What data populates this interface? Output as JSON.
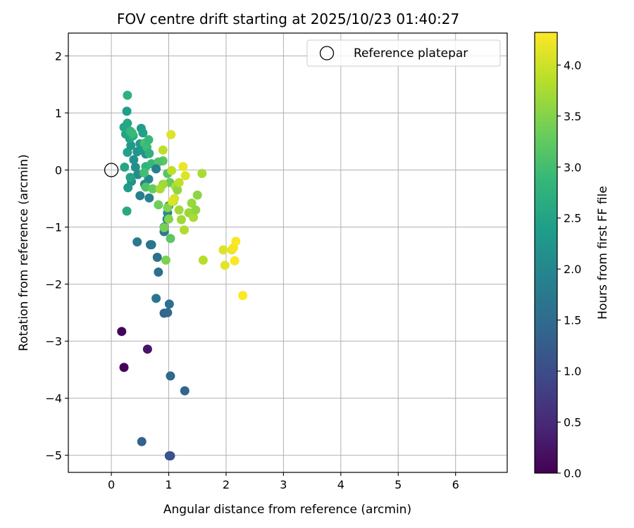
{
  "chart_data": {
    "type": "scatter",
    "title": "FOV centre drift starting at 2025/10/23 01:40:27",
    "xlabel": "Angular distance from reference (arcmin)",
    "ylabel": "Rotation from reference (arcmin)",
    "xlim": [
      -0.75,
      6.9
    ],
    "ylim": [
      -5.3,
      2.4
    ],
    "xticks": [
      0,
      1,
      2,
      3,
      4,
      5,
      6
    ],
    "yticks": [
      2,
      1,
      0,
      -1,
      -2,
      -3,
      -4,
      -5
    ],
    "xtick_labels": [
      "0",
      "1",
      "2",
      "3",
      "4",
      "5",
      "6"
    ],
    "ytick_labels": [
      "2",
      "1",
      "0",
      "−1",
      "−2",
      "−3",
      "−4",
      "−5"
    ],
    "grid": true,
    "legend": {
      "position": "top-right",
      "label": "Reference platepar"
    },
    "reference_point": {
      "x": 0,
      "y": 0
    },
    "colorbar": {
      "label": "Hours from first FF file",
      "min": 0.0,
      "max": 4.32,
      "ticks": [
        0.0,
        0.5,
        1.0,
        1.5,
        2.0,
        2.5,
        3.0,
        3.5,
        4.0
      ],
      "tick_labels": [
        "0.0",
        "0.5",
        "1.0",
        "1.5",
        "2.0",
        "2.5",
        "3.0",
        "3.5",
        "4.0"
      ],
      "colormap": "viridis"
    },
    "points": [
      {
        "x": 0.18,
        "y": -2.83,
        "h": 0.05
      },
      {
        "x": 0.22,
        "y": -3.46,
        "h": 0.05
      },
      {
        "x": 0.63,
        "y": -3.14,
        "h": 0.25
      },
      {
        "x": 0.53,
        "y": -4.76,
        "h": 1.35
      },
      {
        "x": 1.01,
        "y": -5.01,
        "h": 1.05
      },
      {
        "x": 1.03,
        "y": -5.01,
        "h": 1.1
      },
      {
        "x": 1.28,
        "y": -3.87,
        "h": 1.4
      },
      {
        "x": 1.03,
        "y": -3.61,
        "h": 1.45
      },
      {
        "x": 0.92,
        "y": -2.51,
        "h": 1.4
      },
      {
        "x": 0.98,
        "y": -2.5,
        "h": 1.5
      },
      {
        "x": 1.01,
        "y": -2.35,
        "h": 1.55
      },
      {
        "x": 0.78,
        "y": -2.25,
        "h": 1.7
      },
      {
        "x": 0.82,
        "y": -1.79,
        "h": 1.55
      },
      {
        "x": 0.8,
        "y": -1.53,
        "h": 1.6
      },
      {
        "x": 0.45,
        "y": -1.26,
        "h": 1.75
      },
      {
        "x": 0.68,
        "y": -1.31,
        "h": 1.65
      },
      {
        "x": 0.7,
        "y": -1.31,
        "h": 1.7
      },
      {
        "x": 0.92,
        "y": -1.08,
        "h": 1.75
      },
      {
        "x": 0.92,
        "y": -1.0,
        "h": 1.8
      },
      {
        "x": 0.97,
        "y": -0.86,
        "h": 2.0
      },
      {
        "x": 0.98,
        "y": -0.75,
        "h": 2.05
      },
      {
        "x": 1.0,
        "y": -0.63,
        "h": 2.1
      },
      {
        "x": 0.66,
        "y": -0.49,
        "h": 1.9
      },
      {
        "x": 0.5,
        "y": -0.45,
        "h": 1.85
      },
      {
        "x": 0.58,
        "y": -0.25,
        "h": 1.95
      },
      {
        "x": 0.65,
        "y": -0.16,
        "h": 2.0
      },
      {
        "x": 0.46,
        "y": -0.08,
        "h": 2.1
      },
      {
        "x": 0.35,
        "y": -0.2,
        "h": 2.2
      },
      {
        "x": 0.29,
        "y": -0.31,
        "h": 2.35
      },
      {
        "x": 0.33,
        "y": -0.13,
        "h": 2.5
      },
      {
        "x": 0.27,
        "y": -0.72,
        "h": 2.6
      },
      {
        "x": 0.23,
        "y": 0.05,
        "h": 2.55
      },
      {
        "x": 0.28,
        "y": 0.31,
        "h": 2.45
      },
      {
        "x": 0.34,
        "y": 0.43,
        "h": 2.3
      },
      {
        "x": 0.39,
        "y": 0.18,
        "h": 2.2
      },
      {
        "x": 0.42,
        "y": 0.05,
        "h": 2.15
      },
      {
        "x": 0.45,
        "y": 0.32,
        "h": 2.25
      },
      {
        "x": 0.5,
        "y": 0.46,
        "h": 2.35
      },
      {
        "x": 0.54,
        "y": 0.35,
        "h": 2.3
      },
      {
        "x": 0.6,
        "y": 0.28,
        "h": 2.2
      },
      {
        "x": 0.52,
        "y": 0.73,
        "h": 2.4
      },
      {
        "x": 0.55,
        "y": 0.65,
        "h": 2.45
      },
      {
        "x": 0.25,
        "y": 0.63,
        "h": 2.5
      },
      {
        "x": 0.28,
        "y": 0.82,
        "h": 2.6
      },
      {
        "x": 0.22,
        "y": 0.75,
        "h": 2.55
      },
      {
        "x": 0.27,
        "y": 1.03,
        "h": 2.4
      },
      {
        "x": 0.28,
        "y": 1.31,
        "h": 2.75
      },
      {
        "x": 0.32,
        "y": 0.55,
        "h": 2.5
      },
      {
        "x": 0.38,
        "y": 0.6,
        "h": 2.7
      },
      {
        "x": 0.33,
        "y": 0.68,
        "h": 2.85
      },
      {
        "x": 0.36,
        "y": 0.65,
        "h": 2.9
      },
      {
        "x": 0.58,
        "y": 0.47,
        "h": 3.05
      },
      {
        "x": 0.62,
        "y": 0.4,
        "h": 2.95
      },
      {
        "x": 0.65,
        "y": 0.53,
        "h": 2.9
      },
      {
        "x": 0.66,
        "y": 0.29,
        "h": 2.75
      },
      {
        "x": 0.6,
        "y": 0.06,
        "h": 2.8
      },
      {
        "x": 0.7,
        "y": 0.11,
        "h": 2.9
      },
      {
        "x": 0.57,
        "y": -0.05,
        "h": 3.0
      },
      {
        "x": 0.6,
        "y": -0.3,
        "h": 3.1
      },
      {
        "x": 0.72,
        "y": -0.33,
        "h": 3.3
      },
      {
        "x": 0.82,
        "y": -0.61,
        "h": 3.35
      },
      {
        "x": 0.92,
        "y": -1.01,
        "h": 3.4
      },
      {
        "x": 0.95,
        "y": -1.58,
        "h": 3.45
      },
      {
        "x": 0.98,
        "y": -0.66,
        "h": 3.5
      },
      {
        "x": 1.0,
        "y": -0.86,
        "h": 3.5
      },
      {
        "x": 1.03,
        "y": -1.2,
        "h": 3.2
      },
      {
        "x": 0.9,
        "y": 0.16,
        "h": 3.2
      },
      {
        "x": 0.82,
        "y": 0.14,
        "h": 3.1
      },
      {
        "x": 0.98,
        "y": -0.06,
        "h": 3.15
      },
      {
        "x": 1.02,
        "y": -0.22,
        "h": 3.3
      },
      {
        "x": 0.9,
        "y": -0.25,
        "h": 3.7
      },
      {
        "x": 0.85,
        "y": -0.33,
        "h": 3.75
      },
      {
        "x": 0.78,
        "y": 0.02,
        "h": 1.9
      },
      {
        "x": 0.9,
        "y": 0.35,
        "h": 3.9
      },
      {
        "x": 1.04,
        "y": 0.62,
        "h": 4.1
      },
      {
        "x": 1.05,
        "y": -0.01,
        "h": 3.9
      },
      {
        "x": 1.12,
        "y": -0.29,
        "h": 3.8
      },
      {
        "x": 1.15,
        "y": -0.35,
        "h": 3.6
      },
      {
        "x": 1.08,
        "y": -0.55,
        "h": 3.65
      },
      {
        "x": 1.1,
        "y": -0.5,
        "h": 4.05
      },
      {
        "x": 1.06,
        "y": -0.55,
        "h": 4.1
      },
      {
        "x": 1.18,
        "y": -0.7,
        "h": 3.7
      },
      {
        "x": 1.22,
        "y": -0.87,
        "h": 3.7
      },
      {
        "x": 1.27,
        "y": -1.05,
        "h": 3.8
      },
      {
        "x": 1.25,
        "y": 0.06,
        "h": 4.2
      },
      {
        "x": 1.29,
        "y": -0.1,
        "h": 4.1
      },
      {
        "x": 1.18,
        "y": -0.22,
        "h": 3.9
      },
      {
        "x": 1.35,
        "y": -0.75,
        "h": 3.65
      },
      {
        "x": 1.4,
        "y": -0.58,
        "h": 3.65
      },
      {
        "x": 1.43,
        "y": -0.83,
        "h": 3.75
      },
      {
        "x": 1.47,
        "y": -0.7,
        "h": 3.6
      },
      {
        "x": 1.5,
        "y": -0.44,
        "h": 3.55
      },
      {
        "x": 1.58,
        "y": -0.06,
        "h": 3.75
      },
      {
        "x": 1.6,
        "y": -1.58,
        "h": 3.85
      },
      {
        "x": 1.95,
        "y": -1.4,
        "h": 4.1
      },
      {
        "x": 1.98,
        "y": -1.67,
        "h": 4.15
      },
      {
        "x": 2.1,
        "y": -1.4,
        "h": 4.2
      },
      {
        "x": 2.13,
        "y": -1.36,
        "h": 4.25
      },
      {
        "x": 2.17,
        "y": -1.25,
        "h": 4.3
      },
      {
        "x": 2.15,
        "y": -1.59,
        "h": 4.3
      },
      {
        "x": 2.29,
        "y": -2.2,
        "h": 4.32
      }
    ]
  }
}
